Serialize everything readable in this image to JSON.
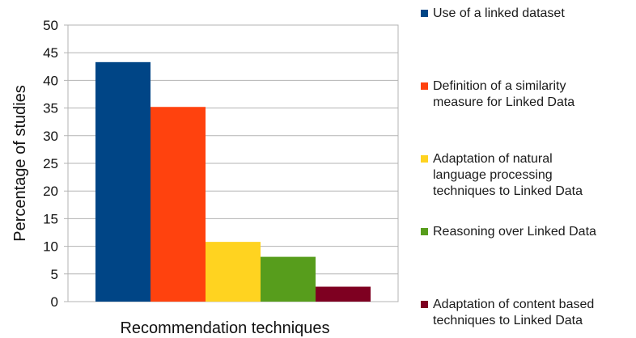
{
  "chart_data": {
    "type": "bar",
    "xlabel": "Recommendation techniques",
    "ylabel": "Percentage of studies",
    "ylim": [
      0,
      50
    ],
    "yticks": [
      "0",
      "5",
      "10",
      "15",
      "20",
      "25",
      "30",
      "35",
      "40",
      "45",
      "50"
    ],
    "grid": true,
    "legend_position": "right",
    "series": [
      {
        "name": "Use of a linked dataset",
        "values": [
          43.3
        ],
        "color": "#004586"
      },
      {
        "name": "Definition of a similarity\nmeasure for Linked Data",
        "values": [
          35.2
        ],
        "color": "#ff420e"
      },
      {
        "name": "Adaptation of natural\nlanguage processing\ntechniques to Linked Data",
        "values": [
          10.8
        ],
        "color": "#ffd320"
      },
      {
        "name": "Reasoning over Linked Data",
        "values": [
          8.1
        ],
        "color": "#579d1c"
      },
      {
        "name": "Adaptation of content based\ntechniques to Linked Data",
        "values": [
          2.7
        ],
        "color": "#7e0021"
      }
    ]
  }
}
